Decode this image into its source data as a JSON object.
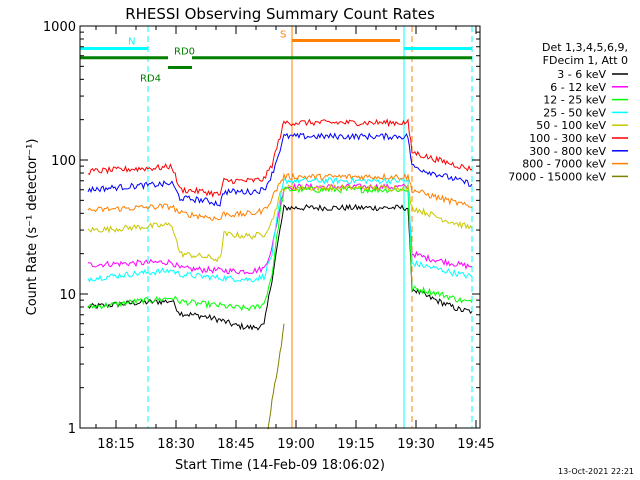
{
  "chart_data": {
    "type": "line",
    "title": "RHESSI Observing Summary Count Rates",
    "xlabel": "Start Time (14-Feb-09 18:06:02)",
    "ylabel": "Count Rate (s⁻¹ detector⁻¹)",
    "yscale": "log",
    "xlim": [
      "18:06",
      "19:46"
    ],
    "ylim": [
      1,
      1000
    ],
    "x_ticks": [
      "18:15",
      "18:30",
      "18:45",
      "19:00",
      "19:15",
      "19:30",
      "19:45"
    ],
    "y_ticks": [
      "1",
      "10",
      "100",
      "1000"
    ],
    "grid": false,
    "legend": {
      "position": "top-right",
      "header": [
        "Det 1,3,4,5,6,9,",
        "FDecim 1, Att 0"
      ]
    },
    "series": [
      {
        "name": "3 - 6 keV",
        "color": "#000000",
        "points": [
          [
            "18:08",
            8.0
          ],
          [
            "18:14",
            8.3
          ],
          [
            "18:20",
            8.6
          ],
          [
            "18:27",
            8.8
          ],
          [
            "18:29",
            8.9
          ],
          [
            "18:31",
            7.2
          ],
          [
            "18:37",
            6.8
          ],
          [
            "18:41",
            6.4
          ],
          [
            "18:45",
            5.8
          ],
          [
            "18:49",
            5.6
          ],
          [
            "18:52",
            5.8
          ],
          [
            "18:54",
            13
          ],
          [
            "18:56",
            30
          ],
          [
            "18:57",
            44
          ],
          [
            "19:28",
            44
          ],
          [
            "19:29",
            11
          ],
          [
            "19:33",
            9.5
          ],
          [
            "19:37",
            8.5
          ],
          [
            "19:41",
            7.6
          ],
          [
            "19:44",
            7.4
          ]
        ]
      },
      {
        "name": "6 - 12 keV",
        "color": "#ff00ff",
        "points": [
          [
            "18:08",
            16.5
          ],
          [
            "18:14",
            16.8
          ],
          [
            "18:20",
            17.0
          ],
          [
            "18:27",
            17.3
          ],
          [
            "18:29",
            17.3
          ],
          [
            "18:31",
            15.5
          ],
          [
            "18:37",
            15.2
          ],
          [
            "18:41",
            15.0
          ],
          [
            "18:45",
            14.8
          ],
          [
            "18:49",
            14.8
          ],
          [
            "18:52",
            15.5
          ],
          [
            "18:54",
            22
          ],
          [
            "18:56",
            45
          ],
          [
            "18:57",
            63
          ],
          [
            "19:28",
            63
          ],
          [
            "19:29",
            20
          ],
          [
            "19:33",
            18.5
          ],
          [
            "19:37",
            17.5
          ],
          [
            "19:41",
            16.5
          ],
          [
            "19:44",
            16.0
          ]
        ]
      },
      {
        "name": "12 - 25 keV",
        "color": "#00ff00",
        "points": [
          [
            "18:08",
            8.0
          ],
          [
            "18:14",
            8.3
          ],
          [
            "18:20",
            8.8
          ],
          [
            "18:27",
            9.2
          ],
          [
            "18:29",
            9.4
          ],
          [
            "18:31",
            8.8
          ],
          [
            "18:37",
            8.4
          ],
          [
            "18:41",
            8.2
          ],
          [
            "18:45",
            7.9
          ],
          [
            "18:49",
            7.8
          ],
          [
            "18:52",
            8.4
          ],
          [
            "18:54",
            14
          ],
          [
            "18:56",
            40
          ],
          [
            "18:57",
            60
          ],
          [
            "19:28",
            60
          ],
          [
            "19:29",
            11
          ],
          [
            "19:33",
            10.5
          ],
          [
            "19:37",
            9.8
          ],
          [
            "19:41",
            9.0
          ],
          [
            "19:44",
            8.6
          ]
        ]
      },
      {
        "name": "25 - 50 keV",
        "color": "#00ffff",
        "points": [
          [
            "18:08",
            13.0
          ],
          [
            "18:14",
            13.6
          ],
          [
            "18:20",
            14.2
          ],
          [
            "18:27",
            14.8
          ],
          [
            "18:29",
            15.0
          ],
          [
            "18:31",
            14.0
          ],
          [
            "18:37",
            13.5
          ],
          [
            "18:41",
            13.2
          ],
          [
            "18:45",
            13.0
          ],
          [
            "18:49",
            12.8
          ],
          [
            "18:52",
            13.5
          ],
          [
            "18:54",
            20
          ],
          [
            "18:56",
            50
          ],
          [
            "18:57",
            70
          ],
          [
            "19:28",
            70
          ],
          [
            "19:29",
            17
          ],
          [
            "19:33",
            16
          ],
          [
            "19:37",
            15
          ],
          [
            "19:41",
            14
          ],
          [
            "19:44",
            13.5
          ]
        ]
      },
      {
        "name": "50 - 100 keV",
        "color": "#c8c800",
        "points": [
          [
            "18:08",
            30.0
          ],
          [
            "18:14",
            30.5
          ],
          [
            "18:20",
            31.5
          ],
          [
            "18:27",
            32.5
          ],
          [
            "18:29",
            33.0
          ],
          [
            "18:31",
            20.0
          ],
          [
            "18:37",
            19.0
          ],
          [
            "18:41",
            18.0
          ],
          [
            "18:42",
            28.0
          ],
          [
            "18:45",
            27.5
          ],
          [
            "18:49",
            27.0
          ],
          [
            "18:52",
            28.0
          ],
          [
            "18:54",
            35
          ],
          [
            "18:56",
            55
          ],
          [
            "18:57",
            62
          ],
          [
            "19:28",
            62
          ],
          [
            "19:29",
            44
          ],
          [
            "19:33",
            40
          ],
          [
            "19:37",
            36
          ],
          [
            "19:41",
            33
          ],
          [
            "19:44",
            31
          ]
        ]
      },
      {
        "name": "100 - 300 keV",
        "color": "#ff0000",
        "points": [
          [
            "18:08",
            82
          ],
          [
            "18:14",
            84
          ],
          [
            "18:20",
            86
          ],
          [
            "18:27",
            88
          ],
          [
            "18:29",
            90
          ],
          [
            "18:31",
            60
          ],
          [
            "18:37",
            58
          ],
          [
            "18:41",
            55
          ],
          [
            "18:42",
            70
          ],
          [
            "18:45",
            70
          ],
          [
            "18:49",
            70
          ],
          [
            "18:52",
            72
          ],
          [
            "18:54",
            92
          ],
          [
            "18:56",
            150
          ],
          [
            "18:57",
            190
          ],
          [
            "19:28",
            190
          ],
          [
            "19:29",
            115
          ],
          [
            "19:33",
            105
          ],
          [
            "19:37",
            97
          ],
          [
            "19:41",
            90
          ],
          [
            "19:44",
            85
          ]
        ]
      },
      {
        "name": "300 - 800 keV",
        "color": "#0000ff",
        "points": [
          [
            "18:08",
            60
          ],
          [
            "18:14",
            62
          ],
          [
            "18:20",
            64
          ],
          [
            "18:27",
            66
          ],
          [
            "18:29",
            67
          ],
          [
            "18:31",
            52
          ],
          [
            "18:37",
            50
          ],
          [
            "18:41",
            47
          ],
          [
            "18:42",
            58
          ],
          [
            "18:45",
            58
          ],
          [
            "18:49",
            58
          ],
          [
            "18:52",
            60
          ],
          [
            "18:54",
            78
          ],
          [
            "18:56",
            120
          ],
          [
            "18:57",
            150
          ],
          [
            "19:28",
            150
          ],
          [
            "19:29",
            90
          ],
          [
            "19:33",
            82
          ],
          [
            "19:37",
            76
          ],
          [
            "19:41",
            70
          ],
          [
            "19:44",
            66
          ]
        ]
      },
      {
        "name": "800 - 7000 keV",
        "color": "#ff8000",
        "points": [
          [
            "18:08",
            42
          ],
          [
            "18:14",
            43
          ],
          [
            "18:20",
            44
          ],
          [
            "18:27",
            45
          ],
          [
            "18:29",
            45
          ],
          [
            "18:31",
            40
          ],
          [
            "18:37",
            38
          ],
          [
            "18:41",
            36
          ],
          [
            "18:42",
            40
          ],
          [
            "18:45",
            39
          ],
          [
            "18:49",
            40
          ],
          [
            "18:52",
            42
          ],
          [
            "18:54",
            52
          ],
          [
            "18:56",
            68
          ],
          [
            "18:57",
            75
          ],
          [
            "19:28",
            75
          ],
          [
            "19:29",
            60
          ],
          [
            "19:33",
            55
          ],
          [
            "19:37",
            51
          ],
          [
            "19:41",
            47
          ],
          [
            "19:44",
            44
          ]
        ]
      },
      {
        "name": "7000 - 15000 keV",
        "color": "#808000",
        "points": [
          [
            "18:53",
            1.0
          ],
          [
            "18:54",
            1.6
          ],
          [
            "18:55",
            2.4
          ],
          [
            "18:56",
            3.6
          ],
          [
            "18:57",
            6.0
          ]
        ]
      }
    ],
    "annotations": [
      {
        "text": "N",
        "color": "#00ffff",
        "segments": [
          [
            "18:06",
            "18:23"
          ],
          [
            "19:27",
            "19:44"
          ]
        ],
        "level": 680
      },
      {
        "text": "S",
        "color": "#ff8000",
        "segments": [
          [
            "18:59",
            "19:26"
          ]
        ],
        "level": 780
      },
      {
        "text": "RD0",
        "color": "#008000",
        "segments": [
          [
            "18:06",
            "18:28"
          ],
          [
            "18:34",
            "19:44"
          ]
        ],
        "level": 580
      },
      {
        "text": "RD4",
        "color": "#008000",
        "segments": [
          [
            "18:28",
            "18:34"
          ]
        ],
        "level": 490
      }
    ],
    "vertical_markers": [
      {
        "x": "18:06",
        "color": "#00ffff",
        "style": "solid"
      },
      {
        "x": "18:23",
        "color": "#00ffff",
        "style": "dashed"
      },
      {
        "x": "18:59",
        "color": "#ff8000",
        "style": "solid"
      },
      {
        "x": "19:27",
        "color": "#00ffff",
        "style": "solid"
      },
      {
        "x": "19:29",
        "color": "#ff8000",
        "style": "dashed"
      },
      {
        "x": "19:44",
        "color": "#00ffff",
        "style": "dashed"
      }
    ],
    "footer": "13-Oct-2021 22:21"
  }
}
